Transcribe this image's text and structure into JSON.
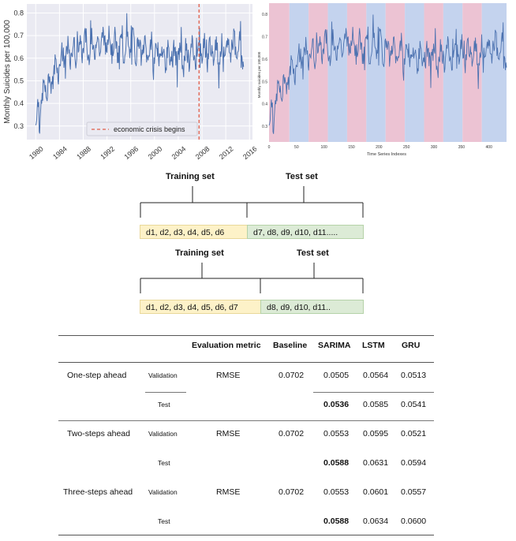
{
  "chart_data": [
    {
      "type": "line",
      "title": "",
      "ylabel": "Monthly Suicides per 100,000",
      "xlabel": "",
      "xlim": [
        1978.5,
        2016.5
      ],
      "ylim": [
        0.24,
        0.84
      ],
      "x_ticks": [
        "1980",
        "1984",
        "1988",
        "1992",
        "1996",
        "2000",
        "2004",
        "2008",
        "2012",
        "2016"
      ],
      "y_ticks": [
        "0.3",
        "0.4",
        "0.5",
        "0.6",
        "0.7",
        "0.8"
      ],
      "legend": "economic crisis begins",
      "legend_placement": "bottom-center",
      "crisis_x": 2007.5,
      "background": "#eaeaf2",
      "line_color": "#4c72b0",
      "vline_color": "#e15d4a",
      "x_start": 1980,
      "x_end": 2015,
      "series_anchor_values": [
        0.33,
        0.42,
        0.48,
        0.54,
        0.58,
        0.61,
        0.62,
        0.64,
        0.66,
        0.64,
        0.66,
        0.67,
        0.68,
        0.66,
        0.64,
        0.65,
        0.66,
        0.65,
        0.64,
        0.63,
        0.62,
        0.63,
        0.62,
        0.6,
        0.61,
        0.6,
        0.62,
        0.62,
        0.64,
        0.62,
        0.64,
        0.62,
        0.63,
        0.65,
        0.66,
        0.62
      ]
    },
    {
      "type": "line",
      "title": "",
      "xlabel": "Time Series Indexes",
      "ylabel": "Monthly suicides per 100,000",
      "xlim": [
        0,
        432
      ],
      "ylim": [
        0.23,
        0.85
      ],
      "x_ticks": [
        "0",
        "50",
        "100",
        "150",
        "200",
        "250",
        "300",
        "350",
        "400"
      ],
      "y_ticks": [
        "0.3",
        "0.4",
        "0.5",
        "0.6",
        "0.7",
        "0.8"
      ],
      "band_colors": [
        "#ecc3d3",
        "#c4d3ee"
      ],
      "band_edges": [
        0,
        37,
        72,
        107,
        142,
        177,
        212,
        247,
        282,
        317,
        352,
        387,
        432
      ],
      "line_color": "#4c72b0",
      "series_anchor_values": [
        0.33,
        0.42,
        0.48,
        0.54,
        0.58,
        0.61,
        0.62,
        0.64,
        0.66,
        0.64,
        0.66,
        0.67,
        0.68,
        0.66,
        0.64,
        0.65,
        0.66,
        0.65,
        0.64,
        0.63,
        0.62,
        0.63,
        0.62,
        0.6,
        0.61,
        0.6,
        0.62,
        0.62,
        0.64,
        0.62,
        0.64,
        0.62,
        0.63,
        0.65,
        0.66,
        0.62
      ]
    }
  ],
  "splits": [
    {
      "training_label": "Training set",
      "test_label": "Test set",
      "train_text": "d1, d2, d3, d4, d5, d6",
      "test_text": "d7, d8, d9, d10, d11....."
    },
    {
      "training_label": "Training set",
      "test_label": "Test set",
      "train_text": "d1, d2, d3, d4, d5, d6, d7",
      "test_text": "d8, d9, d10, d11.."
    }
  ],
  "table": {
    "headers": [
      "Evaluation metric",
      "Baseline",
      "SARIMA",
      "LSTM",
      "GRU"
    ],
    "groups": [
      {
        "name": "One-step ahead",
        "rows": [
          {
            "split": "Validation",
            "metric": "RMSE",
            "baseline": "0.0702",
            "sarima": "0.0505",
            "lstm": "0.0564",
            "gru": "0.0513"
          },
          {
            "split": "Test",
            "metric": "",
            "baseline": "",
            "sarima": "0.0536",
            "lstm": "0.0585",
            "gru": "0.0541"
          }
        ]
      },
      {
        "name": "Two-steps ahead",
        "rows": [
          {
            "split": "Validation",
            "metric": "RMSE",
            "baseline": "0.0702",
            "sarima": "0.0553",
            "lstm": "0.0595",
            "gru": "0.0521"
          },
          {
            "split": "Test",
            "metric": "",
            "baseline": "",
            "sarima": "0.0588",
            "lstm": "0.0631",
            "gru": "0.0594"
          }
        ]
      },
      {
        "name": "Three-steps ahead",
        "rows": [
          {
            "split": "Validation",
            "metric": "RMSE",
            "baseline": "0.0702",
            "sarima": "0.0553",
            "lstm": "0.0601",
            "gru": "0.0557"
          },
          {
            "split": "Test",
            "metric": "",
            "baseline": "",
            "sarima": "0.0588",
            "lstm": "0.0634",
            "gru": "0.0600"
          }
        ]
      }
    ]
  }
}
